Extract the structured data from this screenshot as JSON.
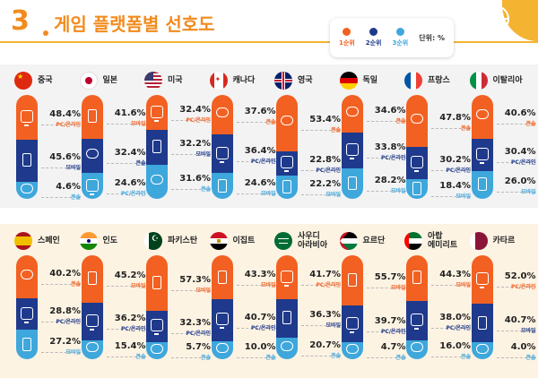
{
  "header": {
    "section_number": "3",
    "title": "게임 플랫폼별 선호도"
  },
  "legend": {
    "rank1": "1순위",
    "rank2": "2순위",
    "rank3": "3순위",
    "unit": "단위: %"
  },
  "colors": {
    "rank1": "#f26122",
    "rank2": "#1f3a8c",
    "rank3": "#3ea7dc",
    "accent": "#f28b1e"
  },
  "chart_data": {
    "type": "bar",
    "title": "게임 플랫폼별 선호도",
    "unit": "%",
    "series_order": [
      "1순위",
      "2순위",
      "3순위"
    ],
    "countries": [
      {
        "country": "중국",
        "flag": "china",
        "ranks": [
          {
            "pct": "48.4%",
            "value": 48.4,
            "platform": "PC/온라인",
            "icon": "pc-icon"
          },
          {
            "pct": "45.6%",
            "value": 45.6,
            "platform": "모바일",
            "icon": "mobile-icon"
          },
          {
            "pct": "4.6%",
            "value": 4.6,
            "platform": "콘솔",
            "icon": "console-icon"
          }
        ]
      },
      {
        "country": "일본",
        "flag": "japan",
        "ranks": [
          {
            "pct": "41.6%",
            "value": 41.6,
            "platform": "모바일",
            "icon": "mobile-icon"
          },
          {
            "pct": "32.4%",
            "value": 32.4,
            "platform": "콘솔",
            "icon": "console-icon"
          },
          {
            "pct": "24.6%",
            "value": 24.6,
            "platform": "PC/온라인",
            "icon": "pc-icon"
          }
        ]
      },
      {
        "country": "미국",
        "flag": "usa",
        "ranks": [
          {
            "pct": "32.4%",
            "value": 32.4,
            "platform": "PC/온라인",
            "icon": "pc-icon"
          },
          {
            "pct": "32.2%",
            "value": 32.2,
            "platform": "모바일",
            "icon": "mobile-icon"
          },
          {
            "pct": "31.6%",
            "value": 31.6,
            "platform": "콘솔",
            "icon": "console-icon"
          }
        ]
      },
      {
        "country": "캐나다",
        "flag": "canada",
        "ranks": [
          {
            "pct": "37.6%",
            "value": 37.6,
            "platform": "콘솔",
            "icon": "console-icon"
          },
          {
            "pct": "36.4%",
            "value": 36.4,
            "platform": "PC/온라인",
            "icon": "pc-icon"
          },
          {
            "pct": "24.6%",
            "value": 24.6,
            "platform": "모바일",
            "icon": "mobile-icon"
          }
        ]
      },
      {
        "country": "영국",
        "flag": "uk",
        "ranks": [
          {
            "pct": "53.4%",
            "value": 53.4,
            "platform": "콘솔",
            "icon": "console-icon"
          },
          {
            "pct": "22.8%",
            "value": 22.8,
            "platform": "PC/온라인",
            "icon": "pc-icon"
          },
          {
            "pct": "22.2%",
            "value": 22.2,
            "platform": "모바일",
            "icon": "mobile-icon"
          }
        ]
      },
      {
        "country": "독일",
        "flag": "germany",
        "ranks": [
          {
            "pct": "34.6%",
            "value": 34.6,
            "platform": "콘솔",
            "icon": "console-icon"
          },
          {
            "pct": "33.8%",
            "value": 33.8,
            "platform": "PC/온라인",
            "icon": "pc-icon"
          },
          {
            "pct": "28.2%",
            "value": 28.2,
            "platform": "모바일",
            "icon": "mobile-icon"
          }
        ]
      },
      {
        "country": "프랑스",
        "flag": "france",
        "ranks": [
          {
            "pct": "47.8%",
            "value": 47.8,
            "platform": "콘솔",
            "icon": "console-icon"
          },
          {
            "pct": "30.2%",
            "value": 30.2,
            "platform": "PC/온라인",
            "icon": "pc-icon"
          },
          {
            "pct": "18.4%",
            "value": 18.4,
            "platform": "모바일",
            "icon": "mobile-icon"
          }
        ]
      },
      {
        "country": "이탈리아",
        "flag": "italy",
        "ranks": [
          {
            "pct": "40.6%",
            "value": 40.6,
            "platform": "콘솔",
            "icon": "console-icon"
          },
          {
            "pct": "30.4%",
            "value": 30.4,
            "platform": "PC/온라인",
            "icon": "pc-icon"
          },
          {
            "pct": "26.0%",
            "value": 26.0,
            "platform": "모바일",
            "icon": "mobile-icon"
          }
        ]
      },
      {
        "country": "스페인",
        "flag": "spain",
        "ranks": [
          {
            "pct": "40.2%",
            "value": 40.2,
            "platform": "콘솔",
            "icon": "console-icon"
          },
          {
            "pct": "28.8%",
            "value": 28.8,
            "platform": "PC/온라인",
            "icon": "pc-icon"
          },
          {
            "pct": "27.2%",
            "value": 27.2,
            "platform": "모바일",
            "icon": "mobile-icon"
          }
        ]
      },
      {
        "country": "인도",
        "flag": "india",
        "ranks": [
          {
            "pct": "45.2%",
            "value": 45.2,
            "platform": "모바일",
            "icon": "mobile-icon"
          },
          {
            "pct": "36.2%",
            "value": 36.2,
            "platform": "PC/온라인",
            "icon": "pc-icon"
          },
          {
            "pct": "15.4%",
            "value": 15.4,
            "platform": "콘솔",
            "icon": "console-icon"
          }
        ]
      },
      {
        "country": "파키스탄",
        "flag": "pakistan",
        "ranks": [
          {
            "pct": "57.3%",
            "value": 57.3,
            "platform": "모바일",
            "icon": "mobile-icon"
          },
          {
            "pct": "32.3%",
            "value": 32.3,
            "platform": "PC/온라인",
            "icon": "pc-icon"
          },
          {
            "pct": "5.7%",
            "value": 5.7,
            "platform": "콘솔",
            "icon": "console-icon"
          }
        ]
      },
      {
        "country": "이집트",
        "flag": "egypt",
        "ranks": [
          {
            "pct": "43.3%",
            "value": 43.3,
            "platform": "모바일",
            "icon": "mobile-icon"
          },
          {
            "pct": "40.7%",
            "value": 40.7,
            "platform": "PC/온라인",
            "icon": "pc-icon"
          },
          {
            "pct": "10.0%",
            "value": 10.0,
            "platform": "콘솔",
            "icon": "console-icon"
          }
        ]
      },
      {
        "country": "사우디\n아라비아",
        "flag": "saudi",
        "ranks": [
          {
            "pct": "41.7%",
            "value": 41.7,
            "platform": "PC/온라인",
            "icon": "pc-icon"
          },
          {
            "pct": "36.3%",
            "value": 36.3,
            "platform": "모바일",
            "icon": "mobile-icon"
          },
          {
            "pct": "20.7%",
            "value": 20.7,
            "platform": "콘솔",
            "icon": "console-icon"
          }
        ]
      },
      {
        "country": "요르단",
        "flag": "jordan",
        "ranks": [
          {
            "pct": "55.7%",
            "value": 55.7,
            "platform": "모바일",
            "icon": "mobile-icon"
          },
          {
            "pct": "39.7%",
            "value": 39.7,
            "platform": "PC/온라인",
            "icon": "pc-icon"
          },
          {
            "pct": "4.7%",
            "value": 4.7,
            "platform": "콘솔",
            "icon": "console-icon"
          }
        ]
      },
      {
        "country": "아랍\n에미리트",
        "flag": "uae",
        "ranks": [
          {
            "pct": "44.3%",
            "value": 44.3,
            "platform": "모바일",
            "icon": "mobile-icon"
          },
          {
            "pct": "38.0%",
            "value": 38.0,
            "platform": "PC/온라인",
            "icon": "pc-icon"
          },
          {
            "pct": "16.0%",
            "value": 16.0,
            "platform": "콘솔",
            "icon": "console-icon"
          }
        ]
      },
      {
        "country": "카타르",
        "flag": "qatar",
        "ranks": [
          {
            "pct": "52.0%",
            "value": 52.0,
            "platform": "PC/온라인",
            "icon": "pc-icon"
          },
          {
            "pct": "40.7%",
            "value": 40.7,
            "platform": "모바일",
            "icon": "mobile-icon"
          },
          {
            "pct": "4.0%",
            "value": 4.0,
            "platform": "콘솔",
            "icon": "console-icon"
          }
        ]
      }
    ]
  }
}
